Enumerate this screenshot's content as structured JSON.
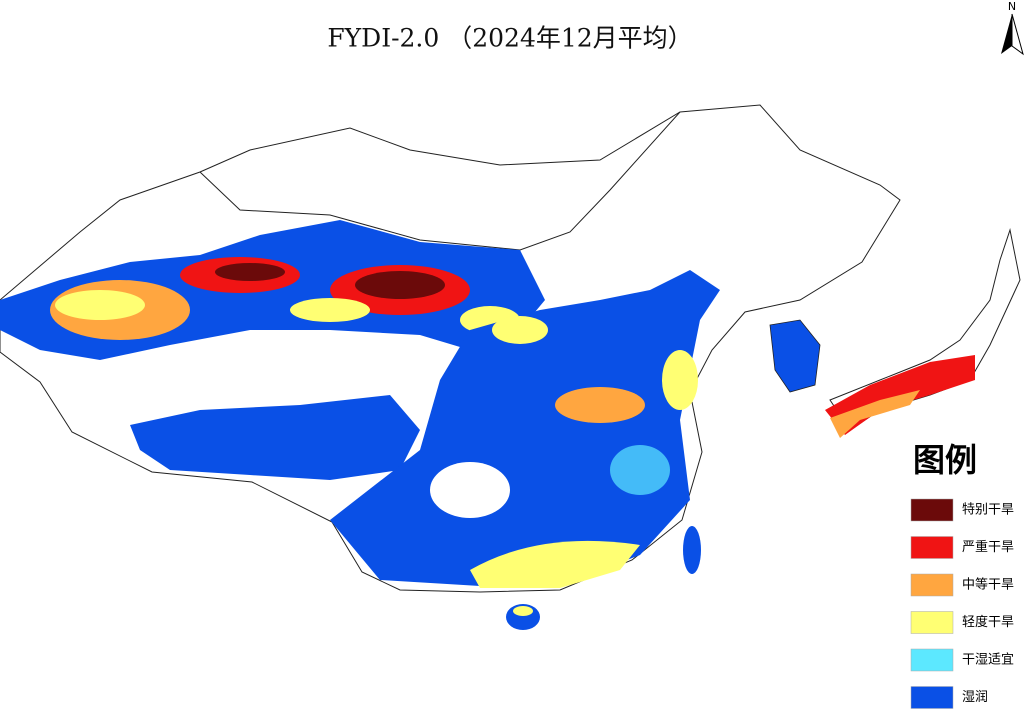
{
  "title": "FYDI-2.0 （2024年12月平均）",
  "north": "N",
  "legend": {
    "title": "图例",
    "items": [
      {
        "label": "特别干旱",
        "color": "#6b0a0a"
      },
      {
        "label": "严重干旱",
        "color": "#f01414"
      },
      {
        "label": "中等干旱",
        "color": "#ffa640"
      },
      {
        "label": "轻度干旱",
        "color": "#ffff73"
      },
      {
        "label": "干湿适宜",
        "color": "#5ce8ff"
      },
      {
        "label": "湿润",
        "color": "#0a50e6"
      }
    ]
  }
}
